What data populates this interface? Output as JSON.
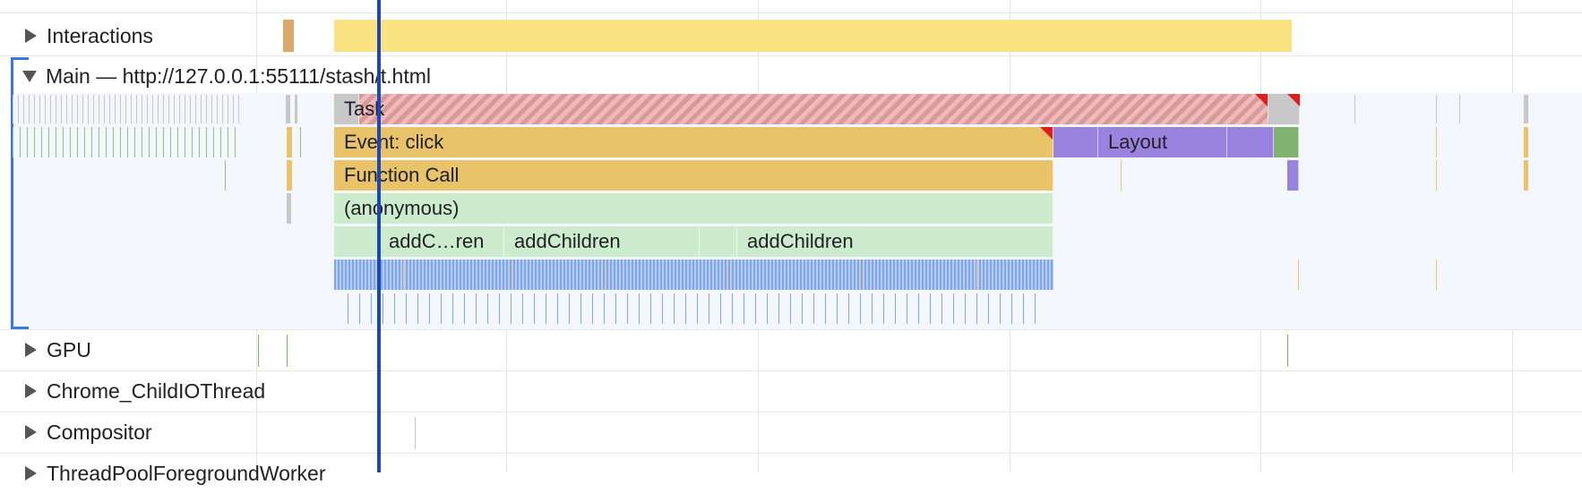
{
  "tracks": {
    "interactions": "Interactions",
    "main": "Main — http://127.0.0.1:55111/stash/t.html",
    "gpu": "GPU",
    "io": "Chrome_ChildIOThread",
    "compositor": "Compositor",
    "worker": "ThreadPoolForegroundWorker"
  },
  "events": {
    "task": "Task",
    "event_click": "Event: click",
    "layout": "Layout",
    "function_call": "Function Call",
    "anonymous": "(anonymous)",
    "add_children_short": "addC…ren",
    "add_children_1": "addChildren",
    "add_children_2": "addChildren"
  },
  "colors": {
    "task": "#c8c8c8",
    "scripting": "#e8c36a",
    "js_frame": "#cdebcd",
    "rendering": "#9a83de",
    "painting": "#7fb26f",
    "interaction": "#fbe283",
    "selection_cursor": "#1c47b8"
  },
  "icons": {
    "track_collapsed": "triangle-right-icon",
    "track_expanded": "triangle-down-icon",
    "long_task_warning": "red-corner-triangle-icon"
  }
}
